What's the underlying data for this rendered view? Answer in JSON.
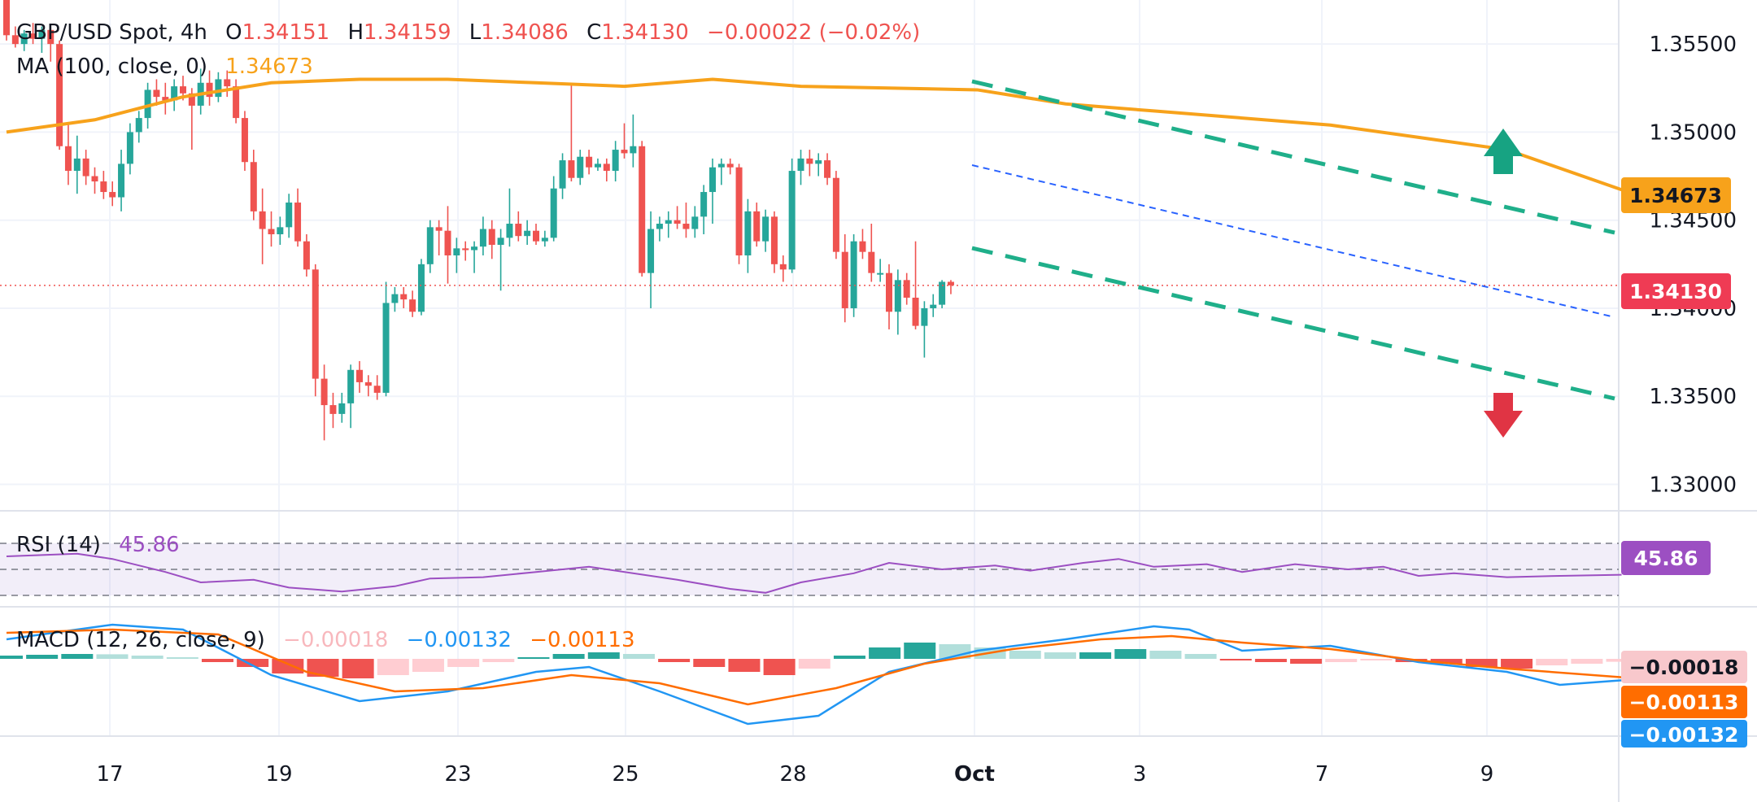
{
  "header": {
    "symbol": "GBP/USD Spot, 4h",
    "open_label": "O",
    "open": "1.34151",
    "high_label": "H",
    "high": "1.34159",
    "low_label": "L",
    "low": "1.34086",
    "close_label": "C",
    "close": "1.34130",
    "change": "−0.00022 (−0.02%)",
    "ma_label": "MA (100, close, 0)",
    "ma_value": "1.34673",
    "rsi_label": "RSI (14)",
    "rsi_value": "45.86",
    "macd_label": "MACD (12, 26, close, 9)",
    "macd_hist": "−0.00018",
    "macd_line": "−0.00132",
    "macd_signal": "−0.00113"
  },
  "price_tags": {
    "ma": "1.34673",
    "last": "1.34130",
    "rsi": "45.86",
    "macd_hist": "−0.00018",
    "macd_signal": "−0.00113",
    "macd_line": "−0.00132"
  },
  "colors": {
    "up": "#26a69a",
    "down": "#ef5350",
    "ma": "#f7a21b",
    "rsi": "#9c4fc2",
    "macd": "#2196f3",
    "signal": "#ff6d00",
    "channel": "#1faf8a",
    "trend": "#2962ff"
  },
  "chart_data": {
    "type": "candlestick",
    "x_labels": [
      "17",
      "19",
      "23",
      "25",
      "28",
      "Oct",
      "3",
      "7",
      "9"
    ],
    "y_ticks": [
      1.355,
      1.35,
      1.345,
      1.34,
      1.335,
      1.33
    ],
    "y_tick_labels": [
      "1.35500",
      "1.35000",
      "1.34500",
      "1.34000",
      "1.33500",
      "1.33000"
    ],
    "ylim": [
      1.3285,
      1.3575
    ],
    "last_price": 1.3413,
    "candles": [
      [
        1.3575,
        1.3575,
        1.3552,
        1.3555
      ],
      [
        1.3555,
        1.356,
        1.3548,
        1.355
      ],
      [
        1.355,
        1.3558,
        1.3546,
        1.3556
      ],
      [
        1.3556,
        1.3562,
        1.355,
        1.3553
      ],
      [
        1.3553,
        1.356,
        1.3545,
        1.3558
      ],
      [
        1.3558,
        1.356,
        1.354,
        1.355
      ],
      [
        1.355,
        1.3552,
        1.349,
        1.3492
      ],
      [
        1.3492,
        1.3505,
        1.347,
        1.3478
      ],
      [
        1.3478,
        1.3498,
        1.3465,
        1.3485
      ],
      [
        1.3485,
        1.349,
        1.347,
        1.3475
      ],
      [
        1.3475,
        1.348,
        1.3465,
        1.3472
      ],
      [
        1.3472,
        1.3478,
        1.3462,
        1.3466
      ],
      [
        1.3466,
        1.3472,
        1.3458,
        1.3463
      ],
      [
        1.3463,
        1.349,
        1.3455,
        1.3482
      ],
      [
        1.3482,
        1.3505,
        1.3476,
        1.35
      ],
      [
        1.35,
        1.3512,
        1.3494,
        1.3508
      ],
      [
        1.3508,
        1.3528,
        1.3502,
        1.3524
      ],
      [
        1.3524,
        1.353,
        1.3515,
        1.352
      ],
      [
        1.352,
        1.3528,
        1.351,
        1.3518
      ],
      [
        1.3518,
        1.353,
        1.3512,
        1.3526
      ],
      [
        1.3526,
        1.3532,
        1.3518,
        1.3522
      ],
      [
        1.3522,
        1.3525,
        1.349,
        1.3515
      ],
      [
        1.3515,
        1.3536,
        1.351,
        1.3528
      ],
      [
        1.3528,
        1.3535,
        1.3515,
        1.352
      ],
      [
        1.352,
        1.3534,
        1.3517,
        1.353
      ],
      [
        1.353,
        1.3535,
        1.352,
        1.3526
      ],
      [
        1.3526,
        1.353,
        1.3505,
        1.3508
      ],
      [
        1.3508,
        1.3512,
        1.3478,
        1.3483
      ],
      [
        1.3483,
        1.349,
        1.345,
        1.3455
      ],
      [
        1.3455,
        1.3468,
        1.3425,
        1.3445
      ],
      [
        1.3445,
        1.3455,
        1.3435,
        1.3442
      ],
      [
        1.3442,
        1.3452,
        1.3436,
        1.3446
      ],
      [
        1.3446,
        1.3465,
        1.344,
        1.346
      ],
      [
        1.346,
        1.3468,
        1.3435,
        1.3438
      ],
      [
        1.3438,
        1.3442,
        1.3418,
        1.3422
      ],
      [
        1.3422,
        1.3425,
        1.335,
        1.336
      ],
      [
        1.336,
        1.3368,
        1.3325,
        1.3345
      ],
      [
        1.3345,
        1.3352,
        1.3332,
        1.334
      ],
      [
        1.334,
        1.3352,
        1.3335,
        1.3346
      ],
      [
        1.3346,
        1.3368,
        1.3332,
        1.3365
      ],
      [
        1.3365,
        1.337,
        1.3352,
        1.3358
      ],
      [
        1.3358,
        1.3362,
        1.335,
        1.3356
      ],
      [
        1.3356,
        1.3362,
        1.3348,
        1.3352
      ],
      [
        1.3352,
        1.3415,
        1.335,
        1.3403
      ],
      [
        1.3403,
        1.3412,
        1.3398,
        1.3408
      ],
      [
        1.3408,
        1.3412,
        1.34,
        1.3405
      ],
      [
        1.3405,
        1.341,
        1.3395,
        1.3398
      ],
      [
        1.3398,
        1.3428,
        1.3396,
        1.3425
      ],
      [
        1.3425,
        1.345,
        1.342,
        1.3446
      ],
      [
        1.3446,
        1.345,
        1.343,
        1.3444
      ],
      [
        1.3444,
        1.3458,
        1.3414,
        1.343
      ],
      [
        1.343,
        1.344,
        1.342,
        1.3434
      ],
      [
        1.3434,
        1.3438,
        1.3427,
        1.3433
      ],
      [
        1.3433,
        1.3438,
        1.342,
        1.3435
      ],
      [
        1.3435,
        1.3452,
        1.343,
        1.3445
      ],
      [
        1.3445,
        1.345,
        1.3428,
        1.3436
      ],
      [
        1.3436,
        1.3445,
        1.341,
        1.344
      ],
      [
        1.344,
        1.3468,
        1.3435,
        1.3448
      ],
      [
        1.3448,
        1.3455,
        1.3438,
        1.3441
      ],
      [
        1.3441,
        1.345,
        1.3436,
        1.3444
      ],
      [
        1.3444,
        1.3448,
        1.3436,
        1.3438
      ],
      [
        1.3438,
        1.3444,
        1.3435,
        1.344
      ],
      [
        1.344,
        1.3475,
        1.3438,
        1.3468
      ],
      [
        1.3468,
        1.3488,
        1.3462,
        1.3484
      ],
      [
        1.3484,
        1.3528,
        1.3472,
        1.3474
      ],
      [
        1.3474,
        1.349,
        1.347,
        1.3486
      ],
      [
        1.3486,
        1.349,
        1.3476,
        1.348
      ],
      [
        1.348,
        1.3485,
        1.3478,
        1.3482
      ],
      [
        1.3482,
        1.3485,
        1.3472,
        1.3478
      ],
      [
        1.3478,
        1.3495,
        1.3472,
        1.349
      ],
      [
        1.349,
        1.3505,
        1.3485,
        1.3488
      ],
      [
        1.3488,
        1.351,
        1.348,
        1.3492
      ],
      [
        1.3492,
        1.3495,
        1.3418,
        1.342
      ],
      [
        1.342,
        1.3455,
        1.34,
        1.3445
      ],
      [
        1.3445,
        1.3452,
        1.3438,
        1.3448
      ],
      [
        1.3448,
        1.3455,
        1.344,
        1.345
      ],
      [
        1.345,
        1.3458,
        1.3445,
        1.3448
      ],
      [
        1.3448,
        1.346,
        1.344,
        1.3445
      ],
      [
        1.3445,
        1.3458,
        1.344,
        1.3452
      ],
      [
        1.3452,
        1.347,
        1.3442,
        1.3466
      ],
      [
        1.3466,
        1.3485,
        1.3448,
        1.348
      ],
      [
        1.348,
        1.3485,
        1.347,
        1.3482
      ],
      [
        1.3482,
        1.3485,
        1.3476,
        1.348
      ],
      [
        1.348,
        1.3482,
        1.3425,
        1.343
      ],
      [
        1.343,
        1.3462,
        1.342,
        1.3455
      ],
      [
        1.3455,
        1.346,
        1.3435,
        1.3438
      ],
      [
        1.3438,
        1.3456,
        1.3432,
        1.3452
      ],
      [
        1.3452,
        1.3455,
        1.342,
        1.3425
      ],
      [
        1.3425,
        1.343,
        1.3415,
        1.3422
      ],
      [
        1.3422,
        1.3485,
        1.342,
        1.3478
      ],
      [
        1.3478,
        1.349,
        1.347,
        1.3485
      ],
      [
        1.3485,
        1.349,
        1.3475,
        1.3482
      ],
      [
        1.3482,
        1.3488,
        1.3475,
        1.3484
      ],
      [
        1.3484,
        1.3488,
        1.347,
        1.3474
      ],
      [
        1.3474,
        1.3478,
        1.3428,
        1.3432
      ],
      [
        1.3432,
        1.3442,
        1.3392,
        1.34
      ],
      [
        1.34,
        1.3442,
        1.3395,
        1.3438
      ],
      [
        1.3438,
        1.3445,
        1.3428,
        1.3432
      ],
      [
        1.3432,
        1.3448,
        1.3415,
        1.342
      ],
      [
        1.342,
        1.3428,
        1.3415,
        1.342
      ],
      [
        1.342,
        1.3425,
        1.3388,
        1.3398
      ],
      [
        1.3398,
        1.3422,
        1.3385,
        1.3416
      ],
      [
        1.3416,
        1.342,
        1.3402,
        1.3406
      ],
      [
        1.3406,
        1.3438,
        1.3388,
        1.339
      ],
      [
        1.339,
        1.3404,
        1.3372,
        1.34
      ],
      [
        1.34,
        1.3408,
        1.3395,
        1.3402
      ],
      [
        1.3402,
        1.3416,
        1.34,
        1.3415
      ],
      [
        1.3415,
        1.3416,
        1.3408,
        1.3413
      ]
    ],
    "ma100": [
      [
        0,
        1.35
      ],
      [
        10,
        1.3507
      ],
      [
        20,
        1.352
      ],
      [
        30,
        1.3528
      ],
      [
        40,
        1.353
      ],
      [
        50,
        1.353
      ],
      [
        60,
        1.3528
      ],
      [
        70,
        1.3526
      ],
      [
        80,
        1.353
      ],
      [
        90,
        1.3526
      ],
      [
        100,
        1.3525
      ],
      [
        110,
        1.3524
      ],
      [
        120,
        1.3516
      ],
      [
        130,
        1.3512
      ],
      [
        140,
        1.3508
      ],
      [
        150,
        1.3504
      ],
      [
        160,
        1.3497
      ],
      [
        170,
        1.349
      ],
      [
        183,
        1.34673
      ]
    ],
    "rsi": [
      [
        0,
        60
      ],
      [
        8,
        62
      ],
      [
        12,
        58
      ],
      [
        18,
        48
      ],
      [
        22,
        40
      ],
      [
        28,
        42
      ],
      [
        32,
        36
      ],
      [
        38,
        33
      ],
      [
        44,
        37
      ],
      [
        48,
        43
      ],
      [
        54,
        44
      ],
      [
        60,
        48
      ],
      [
        66,
        52
      ],
      [
        72,
        46
      ],
      [
        76,
        42
      ],
      [
        82,
        35
      ],
      [
        86,
        32
      ],
      [
        90,
        40
      ],
      [
        96,
        47
      ],
      [
        100,
        55
      ],
      [
        106,
        50
      ],
      [
        112,
        53
      ],
      [
        116,
        49
      ],
      [
        122,
        55
      ],
      [
        126,
        58
      ],
      [
        130,
        52
      ],
      [
        136,
        54
      ],
      [
        140,
        48
      ],
      [
        146,
        54
      ],
      [
        152,
        50
      ],
      [
        156,
        52
      ],
      [
        160,
        45
      ],
      [
        164,
        47
      ],
      [
        170,
        44
      ],
      [
        176,
        45
      ],
      [
        183,
        45.86
      ]
    ],
    "rsi_levels": [
      70,
      50,
      30
    ],
    "macd_hist": [
      0.0002,
      0.00025,
      0.0003,
      0.00028,
      0.0002,
      0.0001,
      -0.0002,
      -0.0005,
      -0.0009,
      -0.0011,
      -0.0012,
      -0.001,
      -0.0008,
      -0.0005,
      -0.0002,
      0.0001,
      0.0003,
      0.0004,
      0.0003,
      -0.0002,
      -0.0005,
      -0.0008,
      -0.001,
      -0.0006,
      0.0002,
      0.0007,
      0.001,
      0.0009,
      0.0007,
      0.0005,
      0.0004,
      0.0004,
      0.0006,
      0.0005,
      0.0003,
      -0.0001,
      -0.0002,
      -0.0003,
      -0.0002,
      -0.0001,
      -0.0002,
      -0.0003,
      -0.0005,
      -0.0006,
      -0.0004,
      -0.0003,
      -0.00018
    ],
    "macd_line": [
      [
        0,
        0.0012
      ],
      [
        12,
        0.0021
      ],
      [
        20,
        0.0018
      ],
      [
        30,
        -0.001
      ],
      [
        40,
        -0.0026
      ],
      [
        50,
        -0.002
      ],
      [
        60,
        -0.0008
      ],
      [
        66,
        -0.0005
      ],
      [
        74,
        -0.002
      ],
      [
        84,
        -0.004
      ],
      [
        92,
        -0.0035
      ],
      [
        100,
        -0.0008
      ],
      [
        110,
        0.0005
      ],
      [
        120,
        0.0012
      ],
      [
        130,
        0.002
      ],
      [
        134,
        0.0018
      ],
      [
        140,
        0.0005
      ],
      [
        150,
        0.0008
      ],
      [
        160,
        -0.0002
      ],
      [
        170,
        -0.0008
      ],
      [
        176,
        -0.0016
      ],
      [
        183,
        -0.00132
      ]
    ],
    "macd_signal": [
      [
        0,
        0.0016
      ],
      [
        12,
        0.0018
      ],
      [
        24,
        0.0015
      ],
      [
        34,
        -0.0008
      ],
      [
        44,
        -0.002
      ],
      [
        54,
        -0.0018
      ],
      [
        64,
        -0.001
      ],
      [
        74,
        -0.0015
      ],
      [
        84,
        -0.0028
      ],
      [
        94,
        -0.0018
      ],
      [
        104,
        -0.0003
      ],
      [
        114,
        0.0006
      ],
      [
        124,
        0.0012
      ],
      [
        132,
        0.0014
      ],
      [
        140,
        0.001
      ],
      [
        150,
        0.0006
      ],
      [
        160,
        -0.0001
      ],
      [
        170,
        -0.0006
      ],
      [
        183,
        -0.00113
      ]
    ],
    "macd_range": [
      -0.0045,
      0.0025
    ]
  }
}
